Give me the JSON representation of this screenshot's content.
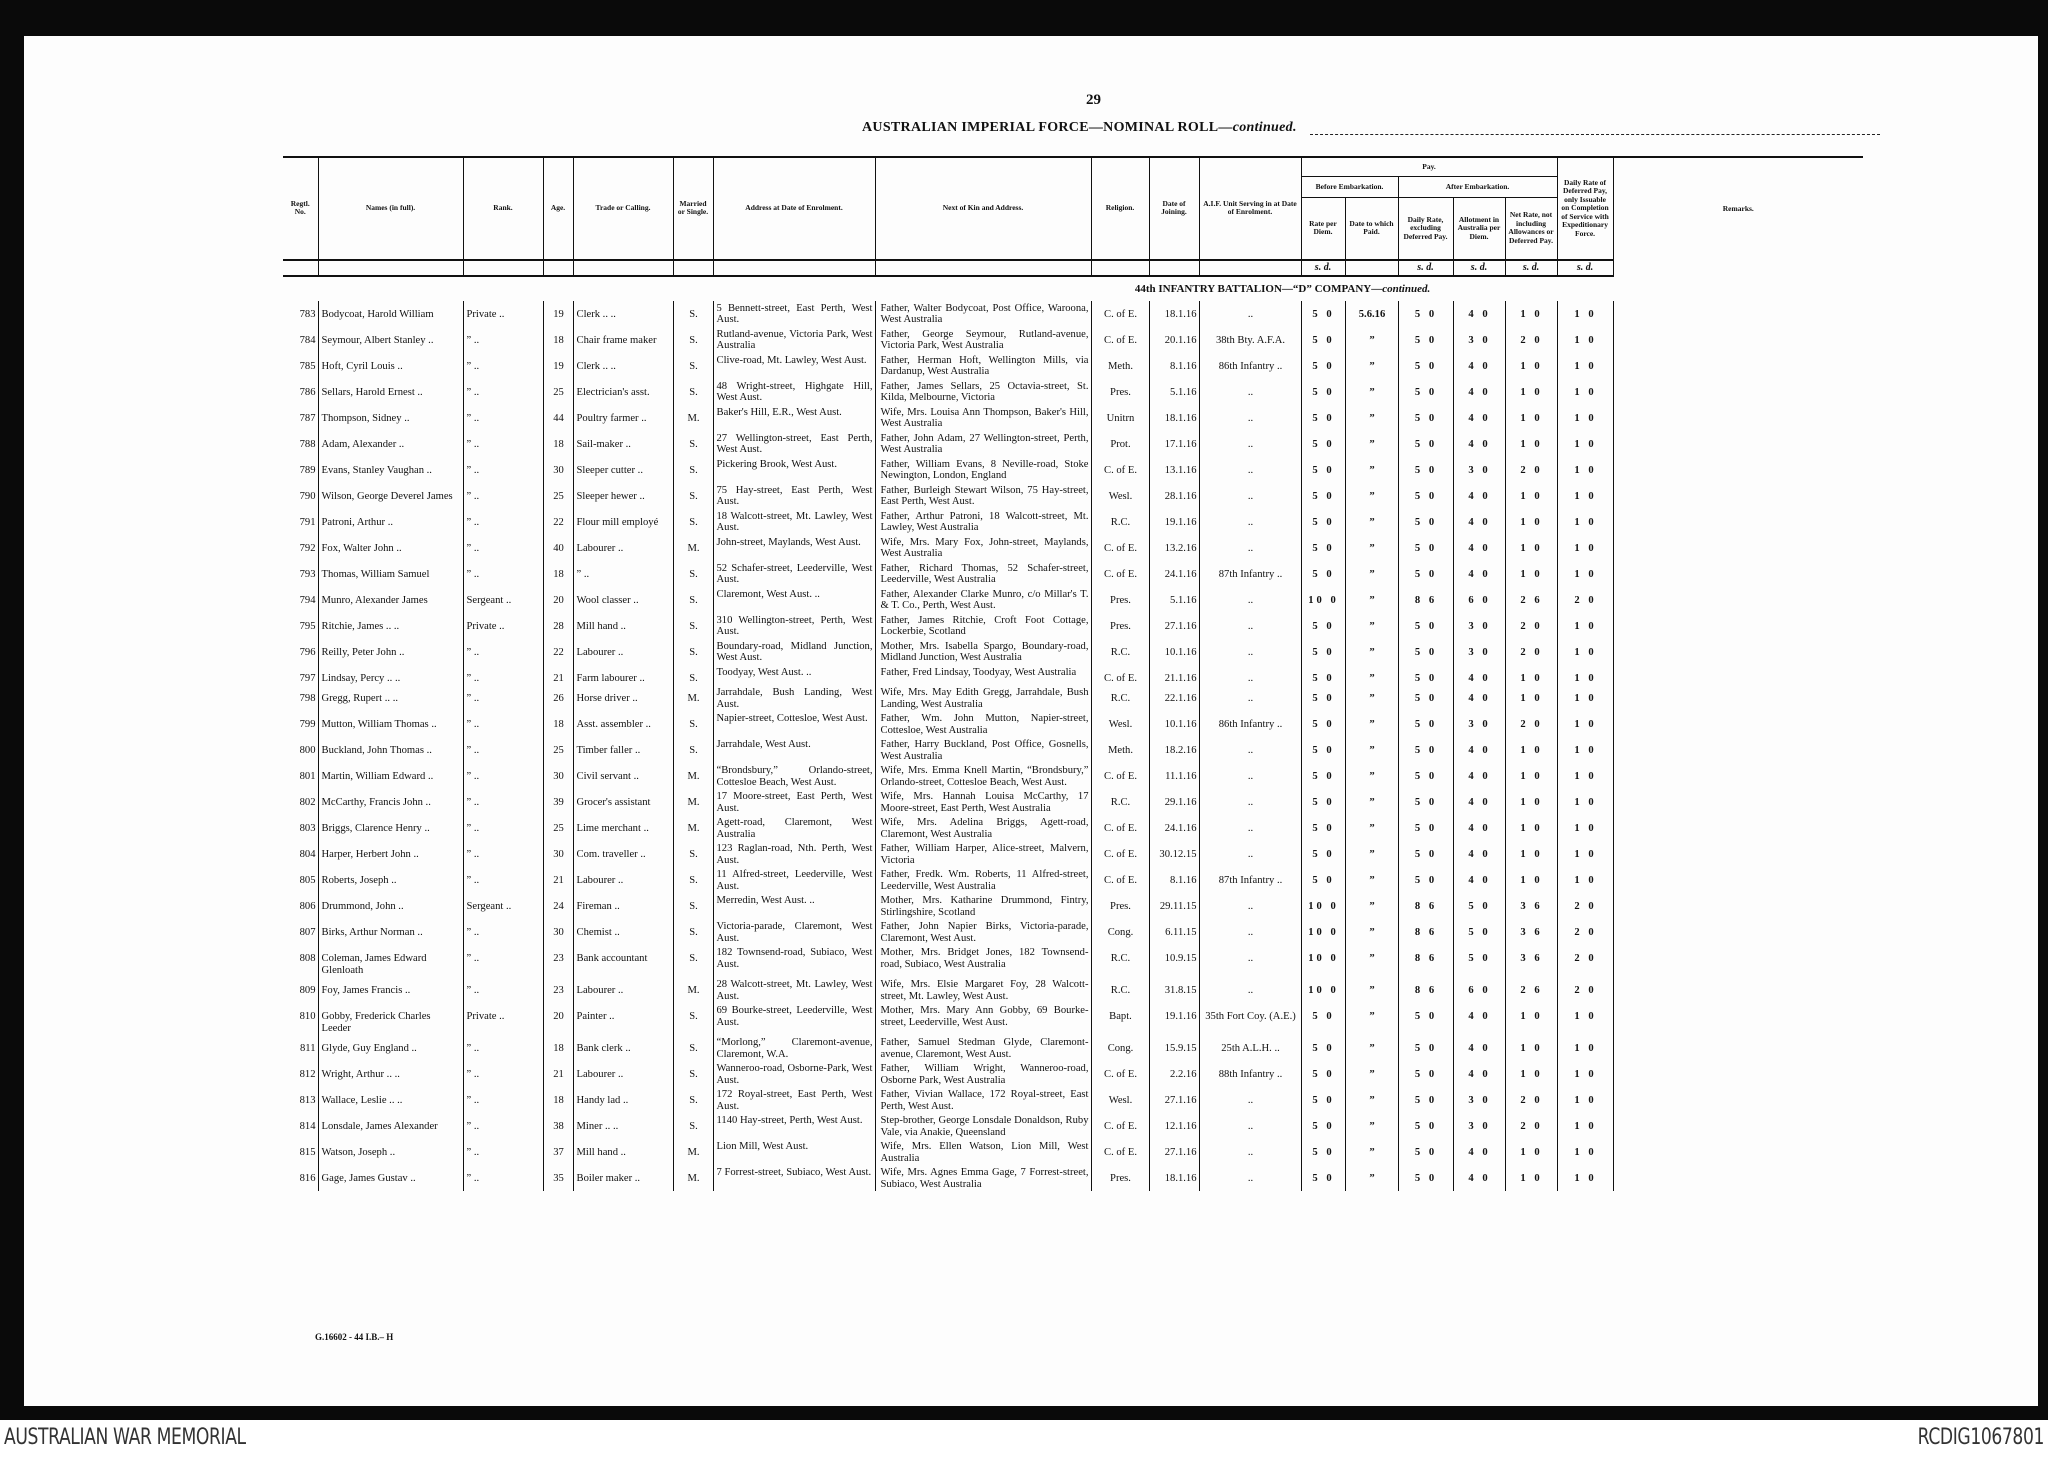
{
  "page_number": "29",
  "title": "AUSTRALIAN IMPERIAL FORCE—NOMINAL ROLL—",
  "title_cont": "continued.",
  "headers": {
    "regtl_no": "Regtl. No.",
    "name": "Names (in full).",
    "rank": "Rank.",
    "age": "Age.",
    "trade": "Trade or Calling.",
    "married": "Married or Single.",
    "address": "Address at Date of Enrolment.",
    "next_of_kin": "Next of Kin and Address.",
    "religion": "Religion.",
    "date_joining": "Date of Joining.",
    "unit": "A.I.F. Unit Serving in at Date of Enrolment.",
    "pay": "Pay.",
    "before_embarkation": "Before Embarkation.",
    "after_embarkation": "After Embarkation.",
    "rate_per_diem": "Rate per Diem.",
    "date_paid": "Date to which Paid.",
    "daily_rate": "Daily Rate, excluding Deferred Pay.",
    "allotment": "Allotment in Australia per Diem.",
    "net_rate": "Net Rate, not including Allowances or Deferred Pay.",
    "deferred": "Daily Rate of Deferred Pay, only Issuable on Completion of Service with Expeditionary Force.",
    "remarks": "Remarks."
  },
  "units": {
    "rate": "s. d.",
    "daily": "s. d.",
    "allotment": "s. d.",
    "net": "s. d.",
    "deferred": "s. d."
  },
  "section": "44th INFANTRY BATTALION—“D” COMPANY—",
  "section_cont": "continued.",
  "rows": [
    [
      "783",
      "Bodycoat, Harold William",
      "Private ..",
      "19",
      "Clerk .. ..",
      "S.",
      "5 Bennett-street, East Perth, West Aust.",
      "Father, Walter Bodycoat, Post Office, Waroona, West Australia",
      "C. of E.",
      "18.1.16",
      "..",
      "5 0",
      "5.6.16",
      "5 0",
      "4 0",
      "1 0",
      "1 0"
    ],
    [
      "784",
      "Seymour, Albert Stanley ..",
      "” ..",
      "18",
      "Chair frame maker",
      "S.",
      "Rutland-avenue, Victoria Park, West Australia",
      "Father, George Seymour, Rutland-avenue, Victoria Park, West Australia",
      "C. of E.",
      "20.1.16",
      "38th Bty. A.F.A.",
      "5 0",
      "”",
      "5 0",
      "3 0",
      "2 0",
      "1 0"
    ],
    [
      "785",
      "Hoft, Cyril Louis ..",
      "” ..",
      "19",
      "Clerk .. ..",
      "S.",
      "Clive-road, Mt. Lawley, West Aust.",
      "Father, Herman Hoft, Wellington Mills, via Dardanup, West Australia",
      "Meth.",
      "8.1.16",
      "86th Infantry ..",
      "5 0",
      "”",
      "5 0",
      "4 0",
      "1 0",
      "1 0"
    ],
    [
      "786",
      "Sellars, Harold Ernest ..",
      "” ..",
      "25",
      "Electrician's asst.",
      "S.",
      "48 Wright-street, Highgate Hill, West Aust.",
      "Father, James Sellars, 25 Octavia-street, St. Kilda, Melbourne, Victoria",
      "Pres.",
      "5.1.16",
      "..",
      "5 0",
      "”",
      "5 0",
      "4 0",
      "1 0",
      "1 0"
    ],
    [
      "787",
      "Thompson, Sidney ..",
      "” ..",
      "44",
      "Poultry farmer ..",
      "M.",
      "Baker's Hill, E.R., West Aust.",
      "Wife, Mrs. Louisa Ann Thompson, Baker's Hill, West Australia",
      "Unitrn",
      "18.1.16",
      "..",
      "5 0",
      "”",
      "5 0",
      "4 0",
      "1 0",
      "1 0"
    ],
    [
      "788",
      "Adam, Alexander ..",
      "” ..",
      "18",
      "Sail-maker ..",
      "S.",
      "27 Wellington-street, East Perth, West Aust.",
      "Father, John Adam, 27 Wellington-street, Perth, West Australia",
      "Prot.",
      "17.1.16",
      "..",
      "5 0",
      "”",
      "5 0",
      "4 0",
      "1 0",
      "1 0"
    ],
    [
      "789",
      "Evans, Stanley Vaughan ..",
      "” ..",
      "30",
      "Sleeper cutter ..",
      "S.",
      "Pickering Brook, West Aust.",
      "Father, William Evans, 8 Neville-road, Stoke Newington, London, England",
      "C. of E.",
      "13.1.16",
      "..",
      "5 0",
      "”",
      "5 0",
      "3 0",
      "2 0",
      "1 0"
    ],
    [
      "790",
      "Wilson, George Deverel James",
      "” ..",
      "25",
      "Sleeper hewer ..",
      "S.",
      "75 Hay-street, East Perth, West Aust.",
      "Father, Burleigh Stewart Wilson, 75 Hay-street, East Perth, West Aust.",
      "Wesl.",
      "28.1.16",
      "..",
      "5 0",
      "”",
      "5 0",
      "4 0",
      "1 0",
      "1 0"
    ],
    [
      "791",
      "Patroni, Arthur ..",
      "” ..",
      "22",
      "Flour mill employé",
      "S.",
      "18 Walcott-street, Mt. Lawley, West Aust.",
      "Father, Arthur Patroni, 18 Walcott-street, Mt. Lawley, West Australia",
      "R.C.",
      "19.1.16",
      "..",
      "5 0",
      "”",
      "5 0",
      "4 0",
      "1 0",
      "1 0"
    ],
    [
      "792",
      "Fox, Walter John ..",
      "” ..",
      "40",
      "Labourer ..",
      "M.",
      "John-street, Maylands, West Aust.",
      "Wife, Mrs. Mary Fox, John-street, Maylands, West Australia",
      "C. of E.",
      "13.2.16",
      "..",
      "5 0",
      "”",
      "5 0",
      "4 0",
      "1 0",
      "1 0"
    ],
    [
      "793",
      "Thomas, William Samuel",
      "” ..",
      "18",
      "” ..",
      "S.",
      "52 Schafer-street, Leederville, West Aust.",
      "Father, Richard Thomas, 52 Schafer-street, Leederville, West Australia",
      "C. of E.",
      "24.1.16",
      "87th Infantry ..",
      "5 0",
      "”",
      "5 0",
      "4 0",
      "1 0",
      "1 0"
    ],
    [
      "794",
      "Munro, Alexander James",
      "Sergeant ..",
      "20",
      "Wool classer ..",
      "S.",
      "Claremont, West Aust. ..",
      "Father, Alexander Clarke Munro, c/o Millar's T. & T. Co., Perth, West Aust.",
      "Pres.",
      "5.1.16",
      "..",
      "10 0",
      "”",
      "8 6",
      "6 0",
      "2 6",
      "2 0"
    ],
    [
      "795",
      "Ritchie, James .. ..",
      "Private ..",
      "28",
      "Mill hand ..",
      "S.",
      "310 Wellington-street, Perth, West Aust.",
      "Father, James Ritchie, Croft Foot Cottage, Lockerbie, Scotland",
      "Pres.",
      "27.1.16",
      "..",
      "5 0",
      "”",
      "5 0",
      "3 0",
      "2 0",
      "1 0"
    ],
    [
      "796",
      "Reilly, Peter John ..",
      "” ..",
      "22",
      "Labourer ..",
      "S.",
      "Boundary-road, Midland Junction, West Aust.",
      "Mother, Mrs. Isabella Spargo, Boundary-road, Midland Junction, West Australia",
      "R.C.",
      "10.1.16",
      "..",
      "5 0",
      "”",
      "5 0",
      "3 0",
      "2 0",
      "1 0"
    ],
    [
      "797",
      "Lindsay, Percy .. ..",
      "” ..",
      "21",
      "Farm labourer ..",
      "S.",
      "Toodyay, West Aust. ..",
      "Father, Fred Lindsay, Toodyay, West Australia",
      "C. of E.",
      "21.1.16",
      "..",
      "5 0",
      "”",
      "5 0",
      "4 0",
      "1 0",
      "1 0"
    ],
    [
      "798",
      "Gregg, Rupert .. ..",
      "” ..",
      "26",
      "Horse driver ..",
      "M.",
      "Jarrahdale, Bush Landing, West Aust.",
      "Wife, Mrs. May Edith Gregg, Jarrahdale, Bush Landing, West Australia",
      "R.C.",
      "22.1.16",
      "..",
      "5 0",
      "”",
      "5 0",
      "4 0",
      "1 0",
      "1 0"
    ],
    [
      "799",
      "Mutton, William Thomas ..",
      "” ..",
      "18",
      "Asst. assembler ..",
      "S.",
      "Napier-street, Cottesloe, West Aust.",
      "Father, Wm. John Mutton, Napier-street, Cottesloe, West Australia",
      "Wesl.",
      "10.1.16",
      "86th Infantry ..",
      "5 0",
      "”",
      "5 0",
      "3 0",
      "2 0",
      "1 0"
    ],
    [
      "800",
      "Buckland, John Thomas ..",
      "” ..",
      "25",
      "Timber faller ..",
      "S.",
      "Jarrahdale, West Aust.",
      "Father, Harry Buckland, Post Office, Gosnells, West Australia",
      "Meth.",
      "18.2.16",
      "..",
      "5 0",
      "”",
      "5 0",
      "4 0",
      "1 0",
      "1 0"
    ],
    [
      "801",
      "Martin, William Edward ..",
      "” ..",
      "30",
      "Civil servant ..",
      "M.",
      "“Brondsbury,” Orlando-street, Cottesloe Beach, West Aust.",
      "Wife, Mrs. Emma Knell Martin, “Brondsbury,” Orlando-street, Cottesloe Beach, West Aust.",
      "C. of E.",
      "11.1.16",
      "..",
      "5 0",
      "”",
      "5 0",
      "4 0",
      "1 0",
      "1 0"
    ],
    [
      "802",
      "McCarthy, Francis John ..",
      "” ..",
      "39",
      "Grocer's assistant",
      "M.",
      "17 Moore-street, East Perth, West Aust.",
      "Wife, Mrs. Hannah Louisa McCarthy, 17 Moore-street, East Perth, West Australia",
      "R.C.",
      "29.1.16",
      "..",
      "5 0",
      "”",
      "5 0",
      "4 0",
      "1 0",
      "1 0"
    ],
    [
      "803",
      "Briggs, Clarence Henry ..",
      "” ..",
      "25",
      "Lime merchant ..",
      "M.",
      "Agett-road, Claremont, West Australia",
      "Wife, Mrs. Adelina Briggs, Agett-road, Claremont, West Australia",
      "C. of E.",
      "24.1.16",
      "..",
      "5 0",
      "”",
      "5 0",
      "4 0",
      "1 0",
      "1 0"
    ],
    [
      "804",
      "Harper, Herbert John ..",
      "” ..",
      "30",
      "Com. traveller ..",
      "S.",
      "123 Raglan-road, Nth. Perth, West Aust.",
      "Father, William Harper, Alice-street, Malvern, Victoria",
      "C. of E.",
      "30.12.15",
      "..",
      "5 0",
      "”",
      "5 0",
      "4 0",
      "1 0",
      "1 0"
    ],
    [
      "805",
      "Roberts, Joseph ..",
      "” ..",
      "21",
      "Labourer ..",
      "S.",
      "11 Alfred-street, Leederville, West Aust.",
      "Father, Fredk. Wm. Roberts, 11 Alfred-street, Leederville, West Australia",
      "C. of E.",
      "8.1.16",
      "87th Infantry ..",
      "5 0",
      "”",
      "5 0",
      "4 0",
      "1 0",
      "1 0"
    ],
    [
      "806",
      "Drummond, John ..",
      "Sergeant ..",
      "24",
      "Fireman ..",
      "S.",
      "Merredin, West Aust. ..",
      "Mother, Mrs. Katharine Drummond, Fintry, Stirlingshire, Scotland",
      "Pres.",
      "29.11.15",
      "..",
      "10 0",
      "”",
      "8 6",
      "5 0",
      "3 6",
      "2 0"
    ],
    [
      "807",
      "Birks, Arthur Norman ..",
      "” ..",
      "30",
      "Chemist ..",
      "S.",
      "Victoria-parade, Claremont, West Aust.",
      "Father, John Napier Birks, Victoria-parade, Claremont, West Aust.",
      "Cong.",
      "6.11.15",
      "..",
      "10 0",
      "”",
      "8 6",
      "5 0",
      "3 6",
      "2 0"
    ],
    [
      "808",
      "Coleman, James Edward Glenloath",
      "” ..",
      "23",
      "Bank accountant",
      "S.",
      "182 Townsend-road, Subiaco, West Aust.",
      "Mother, Mrs. Bridget Jones, 182 Townsend-road, Subiaco, West Australia",
      "R.C.",
      "10.9.15",
      "..",
      "10 0",
      "”",
      "8 6",
      "5 0",
      "3 6",
      "2 0"
    ],
    [
      "809",
      "Foy, James Francis ..",
      "” ..",
      "23",
      "Labourer ..",
      "M.",
      "28 Walcott-street, Mt. Lawley, West Aust.",
      "Wife, Mrs. Elsie Margaret Foy, 28 Walcott-street, Mt. Lawley, West Aust.",
      "R.C.",
      "31.8.15",
      "..",
      "10 0",
      "”",
      "8 6",
      "6 0",
      "2 6",
      "2 0"
    ],
    [
      "810",
      "Gobby, Frederick Charles Leeder",
      "Private ..",
      "20",
      "Painter ..",
      "S.",
      "69 Bourke-street, Leederville, West Aust.",
      "Mother, Mrs. Mary Ann Gobby, 69 Bourke-street, Leederville, West Aust.",
      "Bapt.",
      "19.1.16",
      "35th Fort Coy. (A.E.)",
      "5 0",
      "”",
      "5 0",
      "4 0",
      "1 0",
      "1 0"
    ],
    [
      "811",
      "Glyde, Guy England ..",
      "” ..",
      "18",
      "Bank clerk ..",
      "S.",
      "“Morlong,” Claremont-avenue, Claremont, W.A.",
      "Father, Samuel Stedman Glyde, Claremont-avenue, Claremont, West Aust.",
      "Cong.",
      "15.9.15",
      "25th A.L.H. ..",
      "5 0",
      "”",
      "5 0",
      "4 0",
      "1 0",
      "1 0"
    ],
    [
      "812",
      "Wright, Arthur .. ..",
      "” ..",
      "21",
      "Labourer ..",
      "S.",
      "Wanneroo-road, Osborne-Park, West Aust.",
      "Father, William Wright, Wanneroo-road, Osborne Park, West Australia",
      "C. of E.",
      "2.2.16",
      "88th Infantry ..",
      "5 0",
      "”",
      "5 0",
      "4 0",
      "1 0",
      "1 0"
    ],
    [
      "813",
      "Wallace, Leslie .. ..",
      "” ..",
      "18",
      "Handy lad ..",
      "S.",
      "172 Royal-street, East Perth, West Aust.",
      "Father, Vivian Wallace, 172 Royal-street, East Perth, West Aust.",
      "Wesl.",
      "27.1.16",
      "..",
      "5 0",
      "”",
      "5 0",
      "3 0",
      "2 0",
      "1 0"
    ],
    [
      "814",
      "Lonsdale, James Alexander",
      "” ..",
      "38",
      "Miner .. ..",
      "S.",
      "1140 Hay-street, Perth, West Aust.",
      "Step-brother, George Lonsdale Donaldson, Ruby Vale, via Anakie, Queensland",
      "C. of E.",
      "12.1.16",
      "..",
      "5 0",
      "”",
      "5 0",
      "3 0",
      "2 0",
      "1 0"
    ],
    [
      "815",
      "Watson, Joseph ..",
      "” ..",
      "37",
      "Mill hand ..",
      "M.",
      "Lion Mill, West Aust.",
      "Wife, Mrs. Ellen Watson, Lion Mill, West Australia",
      "C. of E.",
      "27.1.16",
      "..",
      "5 0",
      "”",
      "5 0",
      "4 0",
      "1 0",
      "1 0"
    ],
    [
      "816",
      "Gage, James Gustav ..",
      "” ..",
      "35",
      "Boiler maker ..",
      "M.",
      "7 Forrest-street, Subiaco, West Aust.",
      "Wife, Mrs. Agnes Emma Gage, 7 Forrest-street, Subiaco, West Australia",
      "Pres.",
      "18.1.16",
      "..",
      "5 0",
      "”",
      "5 0",
      "4 0",
      "1 0",
      "1 0"
    ]
  ],
  "footer_code": "G.16602 - 44 I.B.– H",
  "archive": {
    "left": "AUSTRALIAN WAR MEMORIAL",
    "right": "RCDIG1067801"
  }
}
